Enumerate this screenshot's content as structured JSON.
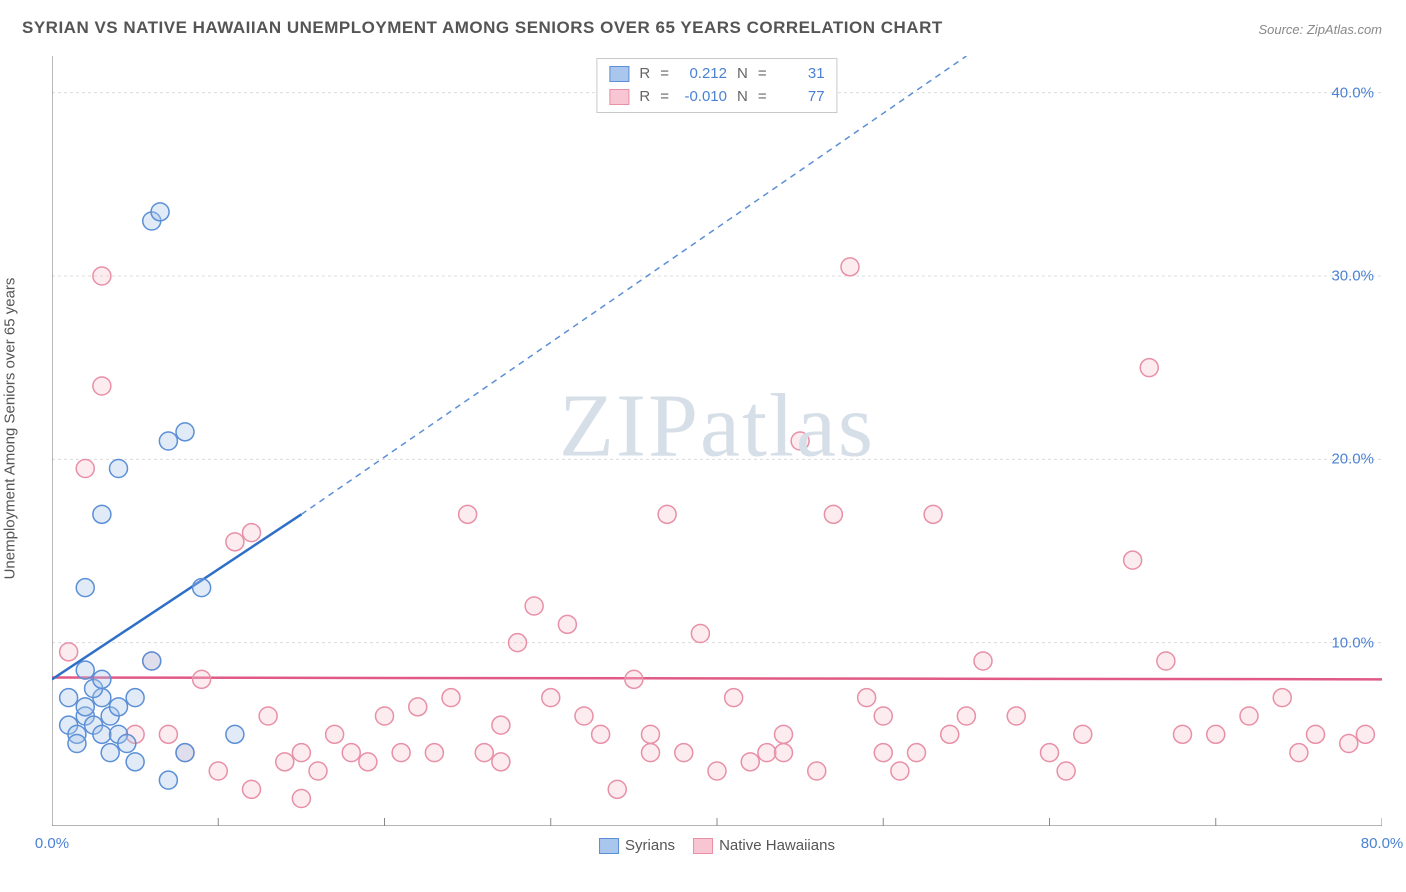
{
  "title": "SYRIAN VS NATIVE HAWAIIAN UNEMPLOYMENT AMONG SENIORS OVER 65 YEARS CORRELATION CHART",
  "source": "Source: ZipAtlas.com",
  "watermark_zip": "ZIP",
  "watermark_rest": "atlas",
  "y_axis_label": "Unemployment Among Seniors over 65 years",
  "chart": {
    "type": "scatter",
    "background_color": "#ffffff",
    "grid_color": "#dcdcdc",
    "axis_color": "#888888",
    "xlim": [
      0,
      80
    ],
    "ylim": [
      0,
      42
    ],
    "x_ticks": [
      0,
      10,
      20,
      30,
      40,
      50,
      60,
      70,
      80
    ],
    "x_tick_labels": [
      "0.0%",
      "",
      "",
      "",
      "",
      "",
      "",
      "",
      "80.0%"
    ],
    "y_ticks": [
      10,
      20,
      30,
      40
    ],
    "y_tick_labels": [
      "10.0%",
      "20.0%",
      "30.0%",
      "40.0%"
    ],
    "marker_radius": 9,
    "marker_stroke_width": 1.5,
    "marker_fill_opacity": 0.35,
    "tick_label_color": "#4a81d4",
    "tick_label_fontsize": 15,
    "axis_label_fontsize": 15,
    "title_fontsize": 17
  },
  "series": [
    {
      "name": "Syrians",
      "color_stroke": "#5b8fd6",
      "color_fill": "#a9c6ec",
      "R_label": "R",
      "R_value": "0.212",
      "N_label": "N",
      "N_value": "31",
      "trend_solid": {
        "x1": 0,
        "y1": 8,
        "x2": 15,
        "y2": 17,
        "width": 2.5,
        "color": "#2e6fc7"
      },
      "trend_dashed": {
        "x1": 15,
        "y1": 17,
        "x2": 55,
        "y2": 42,
        "width": 1.5,
        "color": "#5b8fd6",
        "dash": "6,5"
      },
      "points": [
        [
          1,
          5.5
        ],
        [
          1.5,
          5
        ],
        [
          2,
          6
        ],
        [
          2.5,
          5.5
        ],
        [
          3,
          5
        ],
        [
          2,
          6.5
        ],
        [
          3,
          7
        ],
        [
          2.5,
          7.5
        ],
        [
          3.5,
          6
        ],
        [
          4,
          5
        ],
        [
          1.5,
          4.5
        ],
        [
          4,
          6.5
        ],
        [
          5,
          7
        ],
        [
          3,
          8
        ],
        [
          2,
          13
        ],
        [
          3,
          17
        ],
        [
          4,
          19.5
        ],
        [
          6,
          33
        ],
        [
          6.5,
          33.5
        ],
        [
          7,
          21
        ],
        [
          8,
          21.5
        ],
        [
          9,
          13
        ],
        [
          5,
          3.5
        ],
        [
          7,
          2.5
        ],
        [
          2,
          8.5
        ],
        [
          1,
          7
        ],
        [
          3.5,
          4
        ],
        [
          6,
          9
        ],
        [
          8,
          4
        ],
        [
          11,
          5
        ],
        [
          4.5,
          4.5
        ]
      ]
    },
    {
      "name": "Native Hawaiians",
      "color_stroke": "#e890a6",
      "color_fill": "#f7c6d2",
      "R_label": "R",
      "R_value": "-0.010",
      "N_label": "N",
      "N_value": "77",
      "trend_solid": {
        "x1": 0,
        "y1": 8.1,
        "x2": 80,
        "y2": 8.0,
        "width": 2.5,
        "color": "#e05a85"
      },
      "points": [
        [
          1,
          9.5
        ],
        [
          2,
          19.5
        ],
        [
          3,
          30
        ],
        [
          3,
          24
        ],
        [
          5,
          5
        ],
        [
          6,
          9
        ],
        [
          7,
          5
        ],
        [
          8,
          4
        ],
        [
          9,
          8
        ],
        [
          10,
          3
        ],
        [
          11,
          15.5
        ],
        [
          12,
          16
        ],
        [
          13,
          6
        ],
        [
          14,
          3.5
        ],
        [
          15,
          4
        ],
        [
          16,
          3
        ],
        [
          17,
          5
        ],
        [
          18,
          4
        ],
        [
          19,
          3.5
        ],
        [
          20,
          6
        ],
        [
          21,
          4
        ],
        [
          22,
          6.5
        ],
        [
          23,
          4
        ],
        [
          24,
          7
        ],
        [
          25,
          17
        ],
        [
          26,
          4
        ],
        [
          27,
          3.5
        ],
        [
          15,
          1.5
        ],
        [
          28,
          10
        ],
        [
          29,
          12
        ],
        [
          30,
          7
        ],
        [
          31,
          11
        ],
        [
          32,
          6
        ],
        [
          33,
          5
        ],
        [
          34,
          2
        ],
        [
          35,
          8
        ],
        [
          36,
          5
        ],
        [
          37,
          17
        ],
        [
          38,
          4
        ],
        [
          39,
          10.5
        ],
        [
          40,
          3
        ],
        [
          41,
          7
        ],
        [
          42,
          3.5
        ],
        [
          43,
          4
        ],
        [
          44,
          4
        ],
        [
          45,
          21
        ],
        [
          46,
          3
        ],
        [
          47,
          17
        ],
        [
          48,
          30.5
        ],
        [
          49,
          7
        ],
        [
          50,
          4
        ],
        [
          51,
          3
        ],
        [
          52,
          4
        ],
        [
          53,
          17
        ],
        [
          54,
          5
        ],
        [
          55,
          6
        ],
        [
          56,
          9
        ],
        [
          60,
          4
        ],
        [
          62,
          5
        ],
        [
          65,
          14.5
        ],
        [
          66,
          25
        ],
        [
          67,
          9
        ],
        [
          70,
          5
        ],
        [
          72,
          6
        ],
        [
          74,
          7
        ],
        [
          75,
          4
        ],
        [
          76,
          5
        ],
        [
          78,
          4.5
        ],
        [
          79,
          5
        ],
        [
          61,
          3
        ],
        [
          58,
          6
        ],
        [
          44,
          5
        ],
        [
          36,
          4
        ],
        [
          27,
          5.5
        ],
        [
          50,
          6
        ],
        [
          68,
          5
        ],
        [
          12,
          2
        ]
      ]
    }
  ],
  "legend_bottom": [
    {
      "label": "Syrians",
      "swatch_fill": "#a9c6ec",
      "swatch_stroke": "#5b8fd6"
    },
    {
      "label": "Native Hawaiians",
      "swatch_fill": "#f7c6d2",
      "swatch_stroke": "#e890a6"
    }
  ]
}
